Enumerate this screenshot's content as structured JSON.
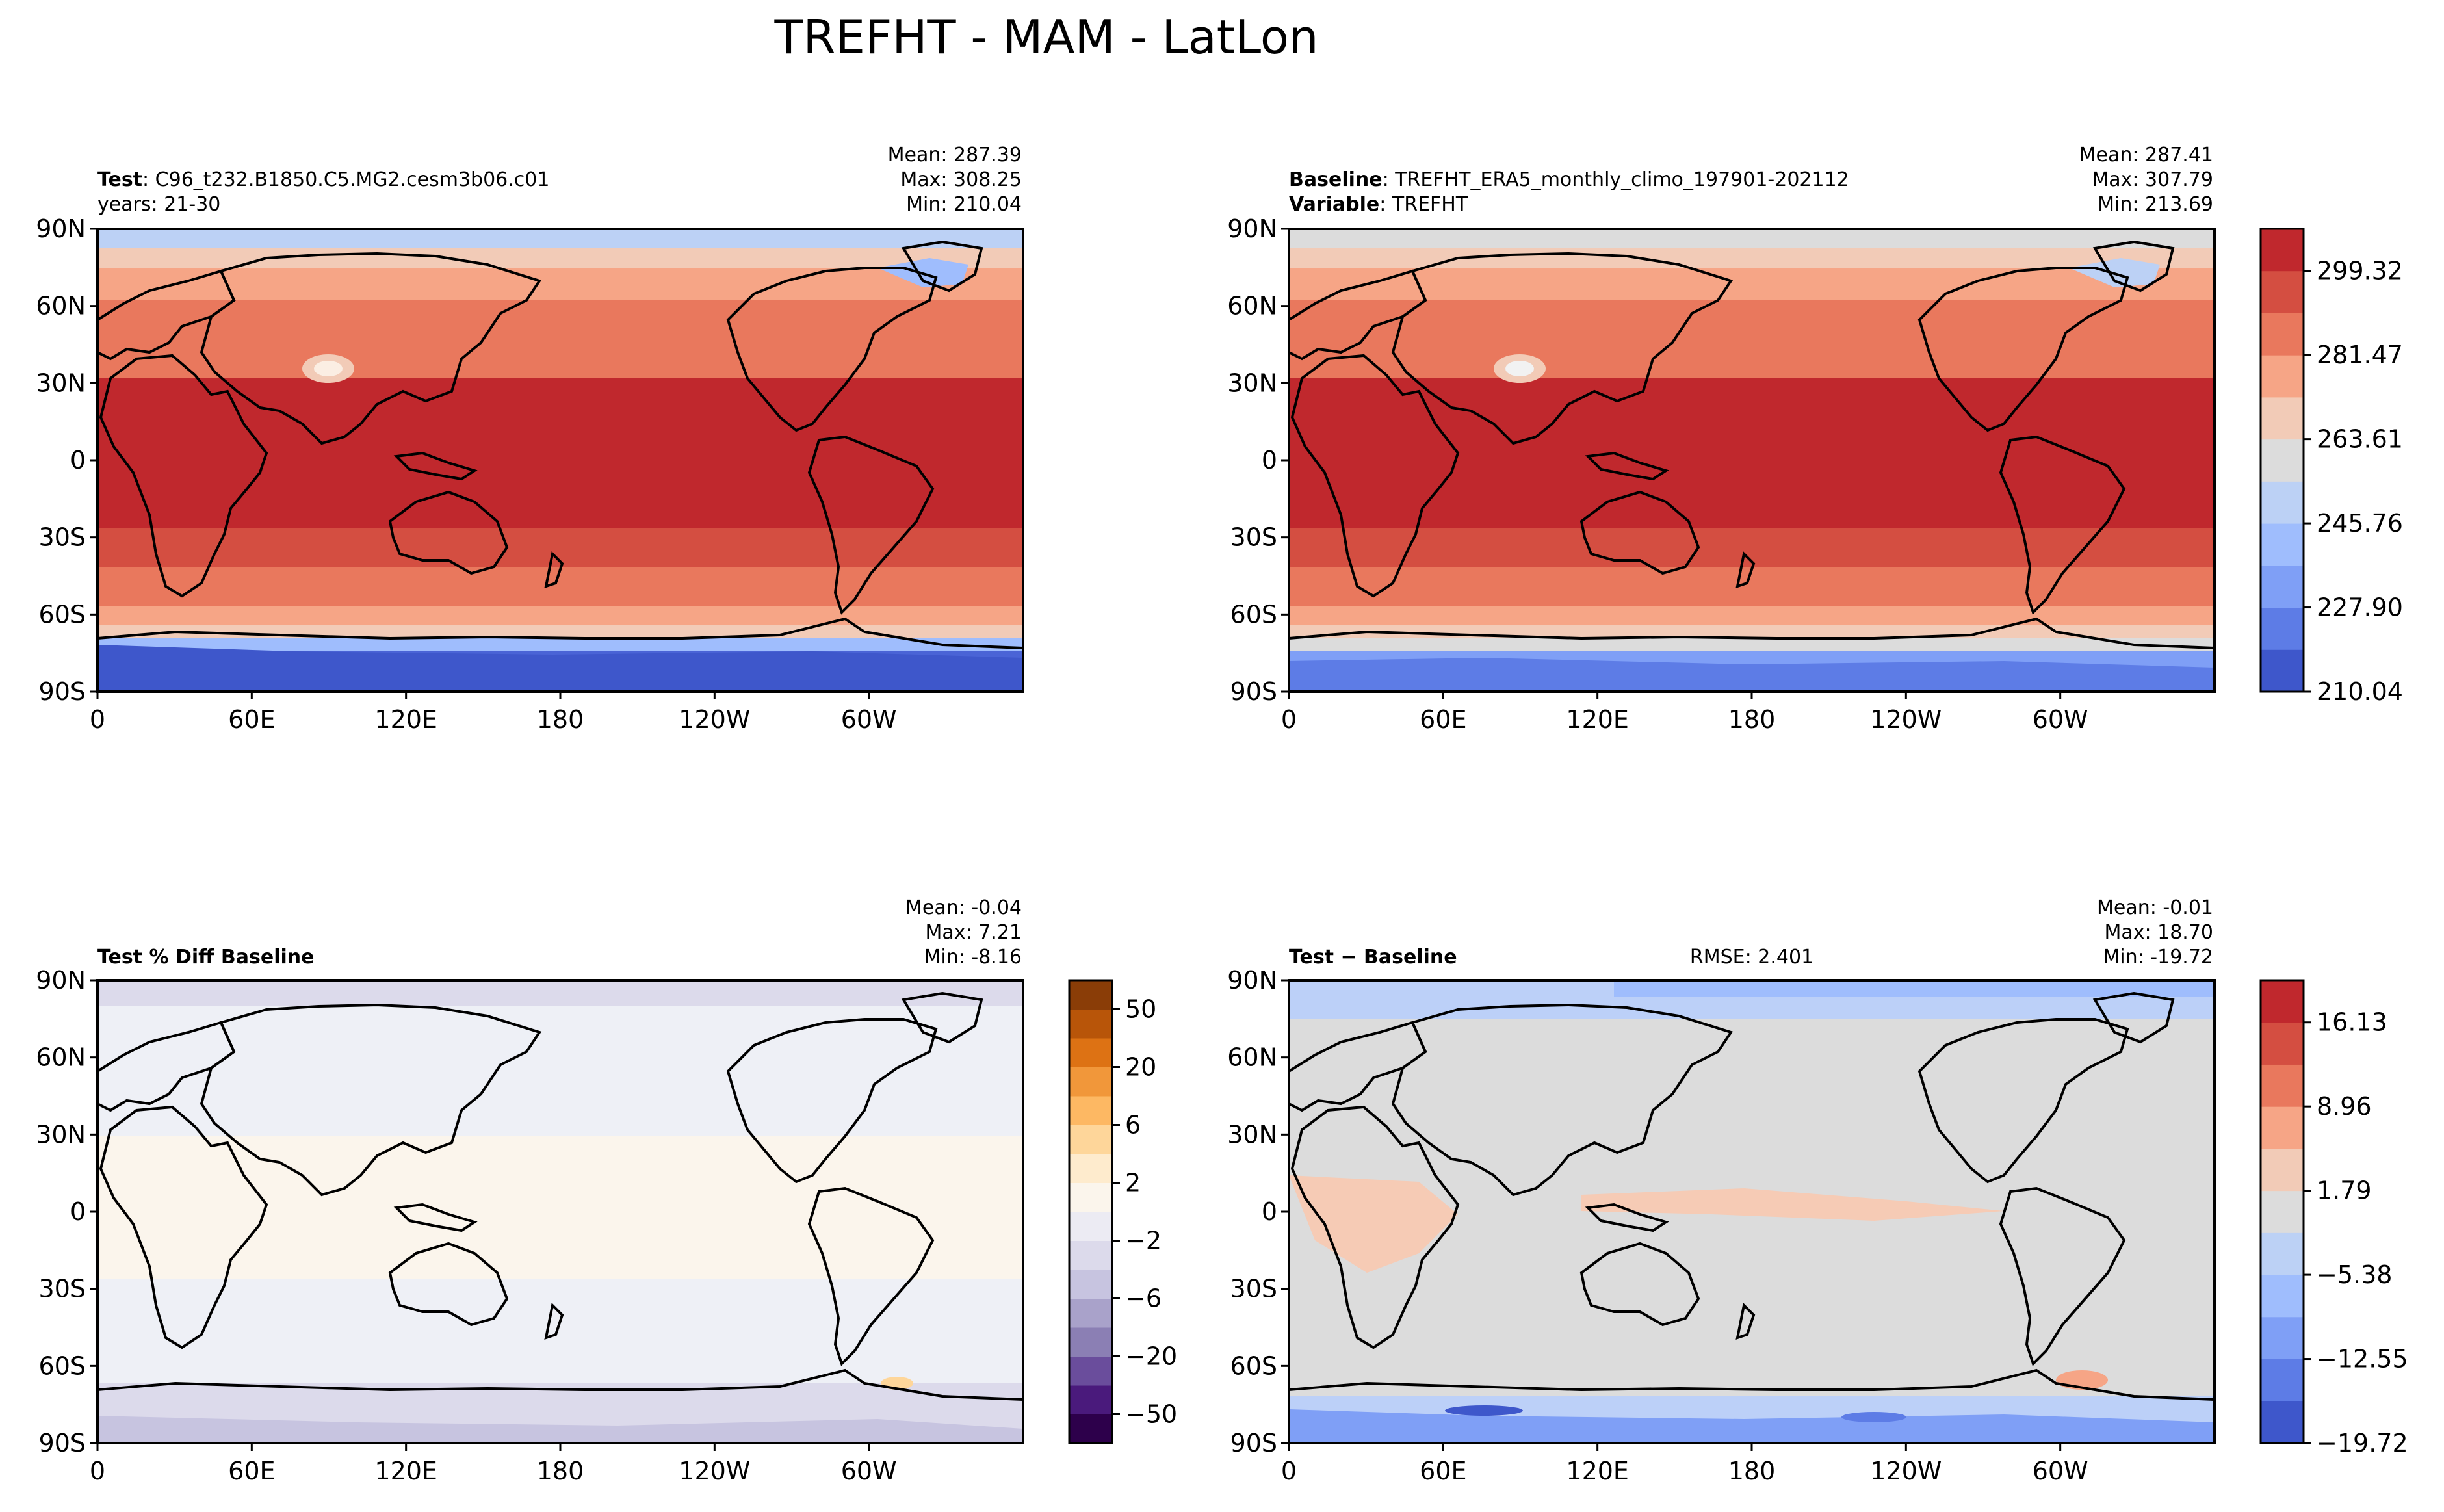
{
  "suptitle": "TREFHT - MAM - LatLon",
  "lat_ticks": [
    "90N",
    "60N",
    "30N",
    "0",
    "30S",
    "60S",
    "90S"
  ],
  "lon_ticks": [
    "0",
    "60E",
    "120E",
    "180",
    "120W",
    "60W"
  ],
  "colors": {
    "coolwarm": [
      "#3e57cb",
      "#5d7ce6",
      "#7f9ff6",
      "#9fbdfd",
      "#bcd1f5",
      "#dcdcdc",
      "#f2cbb7",
      "#f6a586",
      "#e9785d",
      "#d44e41",
      "#c0282d"
    ],
    "puor": [
      "#2d004b",
      "#4a1a7c",
      "#6a4d9c",
      "#8b7fb4",
      "#a9a2ca",
      "#c7c4e0",
      "#dcdaeb",
      "#ecebf3",
      "#fbf5ec",
      "#feebcd",
      "#fed69a",
      "#fdb863",
      "#f1973a",
      "#dd7214",
      "#b85509",
      "#8a3d07"
    ],
    "map_cold": "#4a64d6",
    "map_ice": "#6c88ec",
    "map_cool": "#c5d6f3",
    "map_neutral_light": "#eef0f6",
    "map_warm_light": "#fbf4ea",
    "diff_gray": "#dcdcdc",
    "diff_warm": "#f6cbb5",
    "diff_cool": "#bcd0f8"
  },
  "panels": [
    {
      "id": "test",
      "title_bold": "Test",
      "title_rest": ": C96_t232.B1850.C5.MG2.cesm3b06.c01",
      "title_line2": "years: 21-30",
      "stats": [
        "Mean: 287.39",
        "Max: 308.25",
        "Min: 210.04"
      ]
    },
    {
      "id": "baseline",
      "title_bold": "Baseline",
      "title_rest": ": TREFHT_ERA5_monthly_climo_197901-202112",
      "title_line2_bold": "Variable",
      "title_line2_rest": ": TREFHT",
      "stats": [
        "Mean: 287.41",
        "Max: 307.79",
        "Min: 213.69"
      ]
    },
    {
      "id": "pctdiff",
      "title_bold": "Test % Diff Baseline",
      "stats": [
        "Mean: -0.04",
        "Max:  7.21",
        "Min: -8.16"
      ]
    },
    {
      "id": "diff",
      "title_bold": "Test − Baseline",
      "center": "RMSE: 2.401",
      "stats": [
        "Mean: -0.01",
        "Max: 18.70",
        "Min: -19.72"
      ]
    }
  ],
  "chart_data": [
    {
      "type": "heatmap",
      "name": "Test",
      "variable": "TREFHT",
      "xlim": [
        0,
        360
      ],
      "ylim": [
        -90,
        90
      ],
      "colorbar_shared_with": "Baseline"
    },
    {
      "type": "heatmap",
      "name": "Baseline",
      "xlim": [
        0,
        360
      ],
      "ylim": [
        -90,
        90
      ],
      "colorbar": {
        "ticks": [
          "299.32",
          "281.47",
          "263.61",
          "245.76",
          "227.90",
          "210.04"
        ],
        "vmin": 210.04,
        "vmax": 308.25,
        "levels": 11
      }
    },
    {
      "type": "heatmap",
      "name": "Test % Diff Baseline",
      "xlim": [
        0,
        360
      ],
      "ylim": [
        -90,
        90
      ],
      "colorbar": {
        "ticks": [
          "50",
          "20",
          "6",
          "2",
          "−2",
          "−6",
          "−20",
          "−50"
        ],
        "levels": 16
      }
    },
    {
      "type": "heatmap",
      "name": "Test − Baseline",
      "xlim": [
        0,
        360
      ],
      "ylim": [
        -90,
        90
      ],
      "colorbar": {
        "ticks": [
          "16.13",
          "8.96",
          "1.79",
          "−5.38",
          "−12.55",
          "−19.72"
        ],
        "vmin": -19.72,
        "vmax": 18.7,
        "levels": 11
      }
    }
  ]
}
